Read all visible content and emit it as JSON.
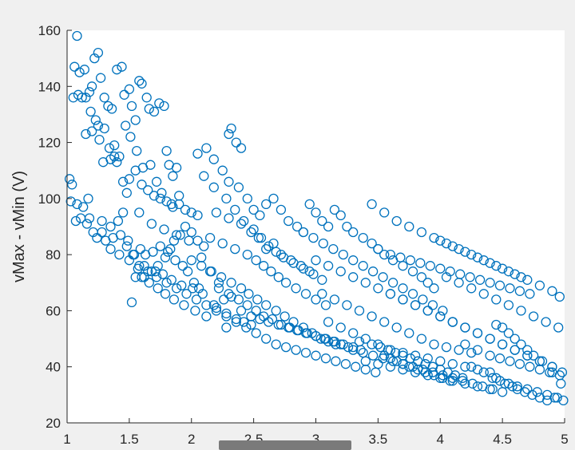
{
  "chart_data": {
    "type": "scatter",
    "title": "",
    "xlabel": "",
    "ylabel": "vMax - vMin (V)",
    "xlim": [
      1,
      5
    ],
    "ylim": [
      20,
      160
    ],
    "xticks": [
      1,
      1.5,
      2,
      2.5,
      3,
      3.5,
      4,
      4.5,
      5
    ],
    "xtick_labels": [
      "1",
      "1.5",
      "2",
      "2.5",
      "3",
      "3.5",
      "4",
      "4.5",
      "5"
    ],
    "yticks": [
      20,
      40,
      60,
      80,
      100,
      120,
      140,
      160
    ],
    "ytick_labels": [
      "20",
      "40",
      "60",
      "80",
      "100",
      "120",
      "140",
      "160"
    ],
    "grid": false,
    "marker": "open-circle",
    "colors": {
      "marker": "#0072BD",
      "axes": "#262626",
      "plot_bg": "#ffffff",
      "figure_bg": "#f0f0f0"
    },
    "series": [
      {
        "x": [
          1.08,
          1.06,
          1.1,
          1.14,
          1.18,
          1.2,
          1.22,
          1.25,
          1.27,
          1.3,
          1.33,
          1.36,
          1.4,
          1.44,
          1.46,
          1.5,
          1.52,
          1.55,
          1.58,
          1.6,
          1.64,
          1.66,
          1.7,
          1.74,
          1.78,
          1.8,
          1.82,
          1.85,
          1.88,
          1.05,
          1.09,
          1.12,
          1.15,
          1.19,
          1.23,
          1.26,
          1.29,
          1.34,
          1.38,
          1.42,
          1.47,
          1.51,
          1.56,
          1.61,
          1.67,
          1.72,
          1.76,
          1.84,
          1.9,
          1.02,
          1.04,
          1.08,
          1.11,
          1.16,
          1.21,
          1.24,
          1.31,
          1.37,
          1.43,
          1.48,
          1.53,
          1.59,
          1.63,
          1.69,
          1.75,
          1.81,
          1.87,
          1.93,
          1.97,
          2.02,
          2.06,
          1.03,
          1.07,
          1.13,
          1.17,
          1.28,
          1.35,
          1.41,
          1.45,
          1.49,
          1.54,
          1.57,
          1.62,
          1.68,
          1.73,
          1.79,
          1.83,
          1.86,
          1.91,
          1.95,
          2.0,
          2.05,
          2.1,
          1.15,
          1.2,
          1.25,
          1.3,
          1.35,
          1.4,
          1.45,
          1.5,
          1.55,
          1.6,
          1.65,
          1.7,
          1.75,
          1.8,
          1.85,
          1.9,
          1.95,
          2.0,
          2.05,
          1.18,
          1.28,
          1.38,
          1.48,
          1.58,
          1.68,
          1.78,
          1.88,
          1.98,
          2.08,
          2.15,
          2.22,
          1.55,
          1.62,
          1.71,
          1.77,
          1.84,
          1.92,
          2.01,
          2.09,
          2.18,
          2.26,
          2.32,
          1.52,
          1.6,
          1.66,
          1.73,
          1.79,
          1.86,
          1.94,
          2.03,
          2.12,
          2.2,
          2.28,
          2.36,
          2.42,
          2.48,
          2.28,
          2.3,
          2.32,
          2.36,
          2.4,
          2.05,
          2.12,
          2.18,
          2.25,
          2.3,
          2.38,
          2.45,
          2.5,
          2.55,
          2.6,
          2.66,
          2.72,
          2.78,
          2.85,
          2.9,
          2.1,
          2.18,
          2.28,
          2.35,
          2.42,
          2.48,
          2.54,
          2.6,
          2.66,
          2.72,
          2.8,
          2.88,
          2.95,
          2.2,
          2.3,
          2.4,
          2.5,
          2.56,
          2.62,
          2.68,
          2.74,
          2.82,
          2.9,
          2.98,
          3.05,
          2.15,
          2.25,
          2.35,
          2.45,
          2.52,
          2.58,
          2.64,
          2.7,
          2.76,
          2.84,
          2.92,
          3.0,
          3.08,
          2.0,
          2.08,
          2.16,
          2.24,
          2.32,
          2.4,
          2.46,
          2.53,
          2.6,
          2.68,
          2.75,
          2.82,
          2.9,
          2.97,
          3.04,
          3.1,
          3.16,
          2.22,
          2.3,
          2.38,
          2.45,
          2.52,
          2.58,
          2.65,
          2.72,
          2.79,
          2.86,
          2.93,
          3.0,
          3.07,
          3.14,
          3.2,
          3.26,
          2.4,
          2.48,
          2.55,
          2.62,
          2.7,
          2.78,
          2.85,
          2.92,
          3.0,
          3.08,
          3.15,
          3.22,
          3.3,
          3.36,
          2.95,
          3.0,
          3.05,
          3.1,
          3.15,
          3.2,
          3.25,
          3.3,
          3.38,
          3.45,
          3.5,
          3.55,
          3.62,
          3.7,
          3.78,
          3.85,
          3.9,
          3.95,
          2.9,
          2.98,
          3.06,
          3.14,
          3.22,
          3.3,
          3.38,
          3.46,
          3.54,
          3.62,
          3.7,
          3.78,
          3.86,
          3.94,
          4.02,
          3.0,
          3.1,
          3.2,
          3.3,
          3.4,
          3.5,
          3.6,
          3.7,
          3.8,
          3.9,
          4.0,
          4.1,
          3.05,
          3.15,
          3.25,
          3.35,
          3.45,
          3.55,
          3.65,
          3.75,
          3.85,
          3.95,
          4.05,
          4.15,
          4.25,
          3.1,
          3.2,
          3.3,
          3.4,
          3.5,
          3.6,
          3.7,
          3.8,
          3.9,
          4.0,
          4.1,
          4.2,
          4.3,
          4.4,
          3.35,
          3.45,
          3.52,
          3.58,
          3.64,
          3.7,
          3.76,
          3.82,
          3.88,
          3.94,
          4.0,
          4.06,
          4.12,
          4.18,
          3.3,
          3.38,
          3.46,
          3.54,
          3.62,
          3.7,
          3.78,
          3.86,
          3.94,
          4.02,
          4.1,
          4.18,
          4.26,
          4.34,
          4.42,
          3.4,
          3.5,
          3.6,
          3.7,
          3.8,
          3.9,
          4.0,
          4.1,
          4.2,
          4.3,
          4.4,
          4.5,
          3.45,
          3.55,
          3.65,
          3.75,
          3.85,
          3.95,
          4.05,
          4.15,
          4.25,
          4.35,
          4.45,
          4.55,
          4.65,
          3.5,
          3.6,
          3.68,
          3.76,
          3.84,
          3.92,
          4.0,
          4.08,
          4.16,
          4.24,
          4.32,
          4.4,
          4.48,
          4.56,
          4.64,
          4.72,
          3.6,
          3.7,
          3.8,
          3.9,
          4.0,
          4.1,
          4.2,
          4.3,
          4.4,
          4.5,
          4.6,
          4.7,
          4.8,
          4.9,
          4.0,
          4.1,
          4.2,
          4.3,
          4.4,
          4.5,
          4.6,
          4.7,
          4.8,
          4.9,
          4.96,
          4.05,
          4.15,
          4.25,
          4.35,
          4.45,
          4.55,
          4.65,
          4.75,
          4.85,
          4.95,
          4.1,
          4.2,
          4.3,
          4.4,
          4.5,
          4.6,
          4.7,
          4.8,
          4.9,
          4.98,
          4.2,
          4.3,
          4.4,
          4.48,
          4.56,
          4.64,
          4.72,
          4.8,
          4.88,
          4.96,
          4.25,
          4.35,
          4.45,
          4.55,
          4.62,
          4.7,
          4.78,
          4.86,
          4.94,
          4.45,
          4.5,
          4.55,
          4.6,
          4.65,
          4.7,
          4.75,
          4.82,
          4.9,
          4.97,
          4.42,
          4.48,
          4.52,
          4.58,
          4.62,
          4.68,
          4.74,
          4.8,
          4.86,
          4.92,
          4.99,
          3.55,
          3.6,
          3.65,
          3.7,
          3.75,
          3.82,
          3.88,
          3.95,
          4.02,
          4.08,
          1.35,
          1.42,
          1.5,
          1.58,
          1.65,
          1.72,
          1.8,
          1.88,
          1.96,
          2.04,
          2.12,
          2.2,
          2.28,
          2.36,
          2.44,
          2.52,
          2.6,
          2.68,
          2.76,
          2.84,
          2.92,
          3.0,
          3.08,
          3.16,
          3.24,
          3.32,
          3.4,
          3.48
        ],
        "y": [
          158,
          147,
          145,
          146,
          138,
          140,
          150,
          152,
          143,
          136,
          133,
          132,
          146,
          147,
          137,
          139,
          133,
          128,
          142,
          141,
          136,
          132,
          131,
          134,
          133,
          117,
          112,
          108,
          111,
          136,
          137,
          136,
          136,
          131,
          128,
          121,
          113,
          118,
          119,
          115,
          126,
          122,
          117,
          111,
          112,
          106,
          102,
          98,
          101,
          107,
          105,
          98,
          93,
          91,
          88,
          86,
          85,
          86,
          87,
          83,
          80,
          82,
          80,
          81,
          83,
          81,
          78,
          76,
          74,
          70,
          68,
          99,
          92,
          97,
          100,
          88,
          90,
          92,
          95,
          85,
          80,
          75,
          72,
          74,
          76,
          79,
          82,
          85,
          87,
          90,
          88,
          85,
          83,
          123,
          124,
          126,
          125,
          114,
          113,
          106,
          107,
          110,
          105,
          103,
          101,
          100,
          99,
          97,
          98,
          96,
          95,
          94,
          93,
          92,
          115,
          102,
          95,
          91,
          89,
          87,
          85,
          79,
          74,
          70,
          72,
          76,
          74,
          73,
          71,
          69,
          68,
          66,
          62,
          64,
          65,
          63,
          72,
          70,
          68,
          66,
          64,
          62,
          60,
          58,
          61,
          59,
          57,
          56,
          55,
          54,
          123,
          125,
          120,
          118,
          116,
          118,
          114,
          110,
          106,
          104,
          100,
          96,
          94,
          98,
          100,
          96,
          92,
          90,
          88,
          108,
          104,
          100,
          96,
          92,
          88,
          86,
          82,
          84,
          80,
          78,
          76,
          74,
          95,
          93,
          91,
          89,
          86,
          83,
          81,
          79,
          77,
          75,
          73,
          71,
          86,
          84,
          82,
          80,
          78,
          76,
          74,
          72,
          70,
          68,
          66,
          64,
          62,
          78,
          76,
          74,
          72,
          70,
          68,
          66,
          64,
          62,
          60,
          58,
          56,
          54,
          52,
          50,
          49,
          48,
          68,
          66,
          64,
          62,
          60,
          58,
          57,
          55,
          54,
          53,
          52,
          51,
          50,
          49,
          48,
          47,
          60,
          58,
          57,
          56,
          55,
          54,
          53,
          52,
          51,
          50,
          49,
          48,
          47,
          46,
          98,
          95,
          92,
          90,
          96,
          94,
          90,
          88,
          86,
          84,
          82,
          80,
          78,
          76,
          74,
          72,
          70,
          68,
          88,
          86,
          84,
          82,
          80,
          78,
          76,
          74,
          72,
          70,
          68,
          66,
          64,
          62,
          60,
          78,
          76,
          74,
          72,
          70,
          68,
          66,
          64,
          62,
          60,
          58,
          56,
          66,
          64,
          62,
          60,
          58,
          56,
          54,
          52,
          50,
          48,
          47,
          46,
          45,
          56,
          54,
          52,
          50,
          48,
          46,
          45,
          44,
          43,
          42,
          41,
          40,
          39,
          38,
          49,
          48,
          47,
          46,
          45,
          44,
          43,
          42,
          41,
          40,
          39,
          38,
          37,
          36,
          46,
          45,
          44,
          43,
          42,
          41,
          40,
          39,
          38,
          37,
          36,
          35,
          34,
          33,
          32,
          42,
          41,
          40,
          39,
          38,
          37,
          36,
          35,
          34,
          33,
          32,
          31,
          98,
          95,
          92,
          90,
          88,
          86,
          84,
          82,
          80,
          78,
          76,
          74,
          72,
          82,
          80,
          79,
          78,
          77,
          76,
          75,
          74,
          73,
          72,
          71,
          70,
          69,
          68,
          67,
          66,
          66,
          64,
          62,
          60,
          58,
          56,
          54,
          52,
          50,
          48,
          46,
          44,
          42,
          40,
          85,
          83,
          81,
          79,
          77,
          75,
          73,
          71,
          69,
          67,
          65,
          72,
          70,
          68,
          66,
          64,
          62,
          60,
          58,
          56,
          54,
          56,
          54,
          52,
          50,
          48,
          46,
          44,
          42,
          40,
          38,
          48,
          46,
          44,
          43,
          42,
          41,
          40,
          39,
          38,
          37,
          40,
          38,
          36,
          34,
          33,
          32,
          31,
          30,
          29,
          55,
          54,
          52,
          50,
          48,
          46,
          44,
          42,
          38,
          34,
          36,
          35,
          34,
          33,
          32,
          31,
          30,
          29,
          28,
          29,
          28,
          44,
          43,
          42,
          41,
          40,
          39,
          38,
          37,
          36,
          35,
          82,
          80,
          78,
          76,
          74,
          72,
          70,
          68,
          66,
          64,
          62,
          60,
          58,
          56,
          54,
          52,
          50,
          48,
          47,
          46,
          45,
          44,
          43,
          42,
          41,
          40,
          39,
          38
        ]
      }
    ]
  }
}
